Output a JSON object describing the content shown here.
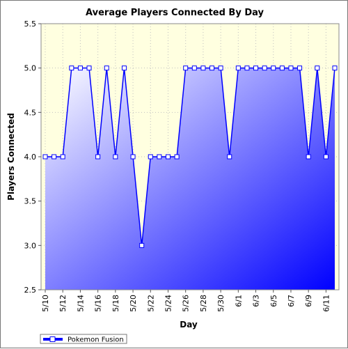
{
  "chart_data": {
    "type": "area",
    "title": "Average Players Connected By Day",
    "xlabel": "Day",
    "ylabel": "Players Connected",
    "ylim": [
      2.5,
      5.5
    ],
    "yticks": [
      "2.5",
      "3.0",
      "3.5",
      "4.0",
      "4.5",
      "5.0",
      "5.5"
    ],
    "xtick_labels": [
      "5/10",
      "5/12",
      "5/14",
      "5/16",
      "5/18",
      "5/20",
      "5/22",
      "5/24",
      "5/26",
      "5/28",
      "5/30",
      "6/1",
      "6/3",
      "6/5",
      "6/7",
      "6/9",
      "6/11"
    ],
    "grid": true,
    "legend_position": "bottom-left",
    "series": [
      {
        "name": "Pokemon Fusion",
        "values": [
          4.0,
          4.0,
          4.0,
          5.0,
          5.0,
          5.0,
          4.0,
          5.0,
          4.0,
          5.0,
          4.0,
          3.0,
          4.0,
          4.0,
          4.0,
          4.0,
          5.0,
          5.0,
          5.0,
          5.0,
          5.0,
          4.0,
          5.0,
          5.0,
          5.0,
          5.0,
          5.0,
          5.0,
          5.0,
          5.0,
          4.0,
          5.0,
          4.0,
          5.0
        ]
      }
    ]
  },
  "colors": {
    "plot_background": "#ffffe0",
    "line": "#0000ff",
    "fill_light": "#ffffff",
    "fill_dark": "#0000ff",
    "grid": "#c0c0c0"
  }
}
